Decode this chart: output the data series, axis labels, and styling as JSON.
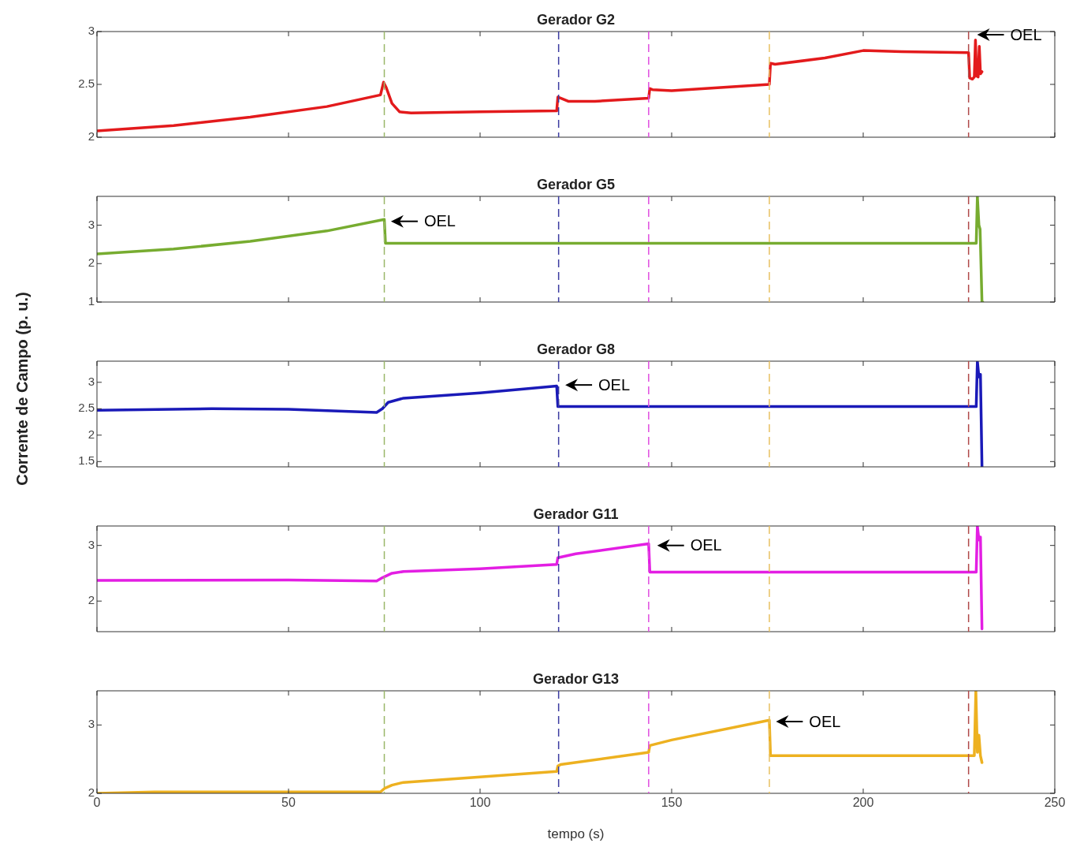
{
  "chart_data": [
    {
      "type": "line",
      "title": "Gerador G2",
      "xlim": [
        0,
        250
      ],
      "xticks": [
        0,
        50,
        100,
        150,
        200,
        250
      ],
      "ylim": [
        2,
        3
      ],
      "yticks": [
        2,
        2.5,
        3
      ],
      "tick_labels": "y",
      "marker": "none",
      "line_style": "solid",
      "series": [
        {
          "color": "#e31a1c",
          "x": [
            0,
            20,
            40,
            60,
            74,
            74.8,
            75.5,
            77,
            79,
            82,
            100,
            120,
            120.3,
            121,
            123,
            130,
            144,
            144.3,
            145,
            150,
            175.5,
            175.8,
            177,
            190,
            200,
            210,
            227.5,
            227.8,
            228.5,
            229,
            229.3,
            229.6,
            230,
            230.3,
            230.6,
            231
          ],
          "values": [
            2.06,
            2.11,
            2.19,
            2.29,
            2.4,
            2.52,
            2.47,
            2.32,
            2.24,
            2.23,
            2.24,
            2.25,
            2.38,
            2.37,
            2.34,
            2.34,
            2.37,
            2.46,
            2.45,
            2.44,
            2.5,
            2.7,
            2.69,
            2.75,
            2.82,
            2.81,
            2.8,
            2.56,
            2.55,
            2.57,
            2.92,
            2.58,
            2.57,
            2.86,
            2.6,
            2.62
          ]
        }
      ],
      "ref_lines": [
        {
          "axis": "x",
          "value": 75,
          "color": "#9ab86a",
          "line_style": "dashed"
        },
        {
          "axis": "x",
          "value": 120.5,
          "color": "#3a3aa0",
          "line_style": "dashed"
        },
        {
          "axis": "x",
          "value": 144,
          "color": "#e04ce0",
          "line_style": "dashed"
        },
        {
          "axis": "x",
          "value": 175.5,
          "color": "#e8c060",
          "line_style": "dashed"
        },
        {
          "axis": "x",
          "value": 227.5,
          "color": "#b04a4a",
          "line_style": "dashed"
        }
      ],
      "annotations": [
        {
          "text": "OEL",
          "x": 228.5,
          "y": 2.97
        }
      ]
    },
    {
      "type": "line",
      "title": "Gerador G5",
      "xlim": [
        0,
        250
      ],
      "xticks": [
        0,
        50,
        100,
        150,
        200,
        250
      ],
      "ylim": [
        1,
        3.75
      ],
      "yticks": [
        1,
        2,
        3
      ],
      "tick_labels": "y",
      "marker": "none",
      "line_style": "solid",
      "series": [
        {
          "color": "#77ac30",
          "x": [
            0,
            20,
            40,
            60,
            75,
            75.3,
            100,
            150,
            200,
            229.5,
            229.8,
            230.2,
            230.5,
            231,
            231.2
          ],
          "values": [
            2.25,
            2.38,
            2.58,
            2.85,
            3.15,
            2.53,
            2.53,
            2.53,
            2.53,
            2.53,
            3.75,
            3.0,
            2.9,
            1.0,
            1.0
          ]
        }
      ],
      "ref_lines": [
        {
          "axis": "x",
          "value": 75,
          "color": "#9ab86a",
          "line_style": "dashed"
        },
        {
          "axis": "x",
          "value": 120.5,
          "color": "#3a3aa0",
          "line_style": "dashed"
        },
        {
          "axis": "x",
          "value": 144,
          "color": "#e04ce0",
          "line_style": "dashed"
        },
        {
          "axis": "x",
          "value": 175.5,
          "color": "#e8c060",
          "line_style": "dashed"
        },
        {
          "axis": "x",
          "value": 227.5,
          "color": "#b04a4a",
          "line_style": "dashed"
        }
      ],
      "annotations": [
        {
          "text": "OEL",
          "x": 75.5,
          "y": 3.1
        }
      ]
    },
    {
      "type": "line",
      "title": "Gerador G8",
      "ylabel": "Corrente de Campo (p. u.)",
      "xlim": [
        0,
        250
      ],
      "xticks": [
        0,
        50,
        100,
        150,
        200,
        250
      ],
      "ylim": [
        1.4,
        3.4
      ],
      "yticks": [
        1.5,
        2,
        2.5,
        3
      ],
      "tick_labels": "y",
      "marker": "none",
      "line_style": "solid",
      "series": [
        {
          "color": "#1a1ab8",
          "x": [
            0,
            30,
            50,
            73,
            74.5,
            76,
            80,
            100,
            120,
            120.3,
            150,
            200,
            229.5,
            229.8,
            230.2,
            230.6,
            231
          ],
          "values": [
            2.47,
            2.5,
            2.49,
            2.43,
            2.5,
            2.62,
            2.7,
            2.8,
            2.93,
            2.54,
            2.54,
            2.54,
            2.54,
            3.4,
            3.1,
            3.15,
            1.4
          ]
        }
      ],
      "ref_lines": [
        {
          "axis": "x",
          "value": 75,
          "color": "#9ab86a",
          "line_style": "dashed"
        },
        {
          "axis": "x",
          "value": 120.5,
          "color": "#3a3aa0",
          "line_style": "dashed"
        },
        {
          "axis": "x",
          "value": 144,
          "color": "#e04ce0",
          "line_style": "dashed"
        },
        {
          "axis": "x",
          "value": 175.5,
          "color": "#e8c060",
          "line_style": "dashed"
        },
        {
          "axis": "x",
          "value": 227.5,
          "color": "#b04a4a",
          "line_style": "dashed"
        }
      ],
      "annotations": [
        {
          "text": "OEL",
          "x": 121,
          "y": 2.95
        }
      ]
    },
    {
      "type": "line",
      "title": "Gerador G11",
      "xlim": [
        0,
        250
      ],
      "xticks": [
        0,
        50,
        100,
        150,
        200,
        250
      ],
      "ylim": [
        1.45,
        3.35
      ],
      "yticks": [
        2,
        3
      ],
      "tick_labels": "y",
      "marker": "none",
      "line_style": "solid",
      "series": [
        {
          "color": "#e31ee3",
          "x": [
            0,
            50,
            73,
            74.5,
            77,
            80,
            100,
            120,
            120.3,
            125,
            144,
            144.3,
            180,
            229.5,
            229.8,
            230.2,
            230.6,
            231
          ],
          "values": [
            2.37,
            2.38,
            2.36,
            2.42,
            2.5,
            2.53,
            2.58,
            2.66,
            2.78,
            2.85,
            3.03,
            2.52,
            2.52,
            2.52,
            3.35,
            3.1,
            3.15,
            1.5
          ]
        }
      ],
      "ref_lines": [
        {
          "axis": "x",
          "value": 75,
          "color": "#9ab86a",
          "line_style": "dashed"
        },
        {
          "axis": "x",
          "value": 120.5,
          "color": "#3a3aa0",
          "line_style": "dashed"
        },
        {
          "axis": "x",
          "value": 144,
          "color": "#e04ce0",
          "line_style": "dashed"
        },
        {
          "axis": "x",
          "value": 175.5,
          "color": "#e8c060",
          "line_style": "dashed"
        },
        {
          "axis": "x",
          "value": 227.5,
          "color": "#b04a4a",
          "line_style": "dashed"
        }
      ],
      "annotations": [
        {
          "text": "OEL",
          "x": 145,
          "y": 3.0
        }
      ]
    },
    {
      "type": "line",
      "title": "Gerador G13",
      "xlabel": "tempo (s)",
      "xlim": [
        0,
        250
      ],
      "xticks": [
        0,
        50,
        100,
        150,
        200,
        250
      ],
      "ylim": [
        2,
        3.5
      ],
      "yticks": [
        2,
        3
      ],
      "marker": "none",
      "line_style": "solid",
      "series": [
        {
          "color": "#edb120",
          "x": [
            0,
            15,
            50,
            74,
            75,
            77,
            80,
            100,
            120,
            120.3,
            121,
            144,
            144.3,
            150,
            175.5,
            175.8,
            200,
            229,
            229.4,
            229.8,
            230.2,
            230.6,
            231
          ],
          "values": [
            2.0,
            2.02,
            2.02,
            2.02,
            2.07,
            2.12,
            2.16,
            2.24,
            2.32,
            2.4,
            2.42,
            2.6,
            2.7,
            2.78,
            3.07,
            2.55,
            2.55,
            2.55,
            3.5,
            2.6,
            2.85,
            2.55,
            2.45
          ]
        }
      ],
      "ref_lines": [
        {
          "axis": "x",
          "value": 75,
          "color": "#9ab86a",
          "line_style": "dashed"
        },
        {
          "axis": "x",
          "value": 120.5,
          "color": "#3a3aa0",
          "line_style": "dashed"
        },
        {
          "axis": "x",
          "value": 144,
          "color": "#e04ce0",
          "line_style": "dashed"
        },
        {
          "axis": "x",
          "value": 175.5,
          "color": "#e8c060",
          "line_style": "dashed"
        },
        {
          "axis": "x",
          "value": 227.5,
          "color": "#b04a4a",
          "line_style": "dashed"
        }
      ],
      "annotations": [
        {
          "text": "OEL",
          "x": 176,
          "y": 3.05
        }
      ]
    }
  ]
}
